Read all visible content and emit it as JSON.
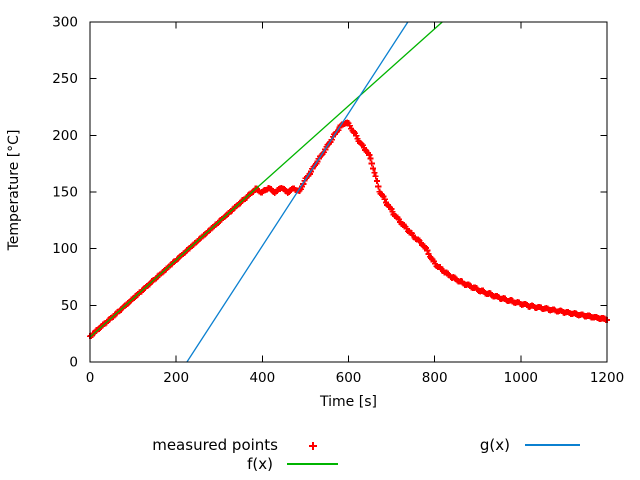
{
  "colors": {
    "background": "#ffffff",
    "axis": "#000000",
    "text": "#000000",
    "measured": "#ff0000",
    "f_line": "#00b400",
    "g_line": "#0b80d0"
  },
  "chart_data": {
    "type": "scatter",
    "title": "",
    "xlabel": "Time [s]",
    "ylabel": "Temperature [°C]",
    "xlim": [
      0,
      1200
    ],
    "ylim": [
      0,
      300
    ],
    "xticks": [
      0,
      200,
      400,
      600,
      800,
      1000,
      1200
    ],
    "yticks": [
      0,
      50,
      100,
      150,
      200,
      250,
      300
    ],
    "grid": false,
    "legend_position": "below",
    "series": [
      {
        "name": "measured points",
        "type": "points",
        "marker": "plus",
        "color": "#ff0000",
        "sample_step_s": 3,
        "jitter_c": 0.9,
        "anchor_points": [
          [
            0,
            22.5
          ],
          [
            25,
            31
          ],
          [
            50,
            39
          ],
          [
            75,
            47.5
          ],
          [
            100,
            56
          ],
          [
            125,
            64.5
          ],
          [
            150,
            73
          ],
          [
            175,
            81.5
          ],
          [
            200,
            90
          ],
          [
            225,
            98.5
          ],
          [
            250,
            107
          ],
          [
            275,
            115.5
          ],
          [
            300,
            124
          ],
          [
            325,
            132.5
          ],
          [
            350,
            141
          ],
          [
            365,
            146
          ],
          [
            378,
            150.5
          ],
          [
            385,
            153
          ],
          [
            392,
            151
          ],
          [
            398,
            149.5
          ],
          [
            406,
            151.5
          ],
          [
            414,
            153.5
          ],
          [
            421,
            152
          ],
          [
            429,
            149.5
          ],
          [
            437,
            152
          ],
          [
            444,
            154
          ],
          [
            451,
            152
          ],
          [
            459,
            149.5
          ],
          [
            467,
            152
          ],
          [
            474,
            153.5
          ],
          [
            481,
            151
          ],
          [
            487,
            150.5
          ],
          [
            492,
            155.5
          ],
          [
            500,
            161
          ],
          [
            510,
            166.5
          ],
          [
            520,
            172.5
          ],
          [
            530,
            178.5
          ],
          [
            540,
            184
          ],
          [
            550,
            190
          ],
          [
            560,
            196
          ],
          [
            570,
            202
          ],
          [
            580,
            207.5
          ],
          [
            588,
            210
          ],
          [
            595,
            211.5
          ],
          [
            600,
            210
          ],
          [
            606,
            206.5
          ],
          [
            612,
            203
          ],
          [
            620,
            198
          ],
          [
            628,
            193
          ],
          [
            636,
            189
          ],
          [
            643,
            186
          ],
          [
            648,
            182
          ],
          [
            652,
            178
          ],
          [
            656,
            173
          ],
          [
            660,
            167.5
          ],
          [
            664,
            162
          ],
          [
            668,
            156
          ],
          [
            672,
            151
          ],
          [
            676,
            148.5
          ],
          [
            680,
            146
          ],
          [
            688,
            140.5
          ],
          [
            696,
            136
          ],
          [
            704,
            131.5
          ],
          [
            712,
            127.5
          ],
          [
            720,
            124
          ],
          [
            730,
            119.5
          ],
          [
            740,
            115.5
          ],
          [
            750,
            111.5
          ],
          [
            760,
            108
          ],
          [
            770,
            104.5
          ],
          [
            778,
            101
          ],
          [
            783,
            98
          ],
          [
            788,
            94.5
          ],
          [
            793,
            91
          ],
          [
            798,
            88
          ],
          [
            804,
            85.5
          ],
          [
            812,
            83
          ],
          [
            820,
            80.5
          ],
          [
            830,
            77.5
          ],
          [
            840,
            75
          ],
          [
            852,
            72.5
          ],
          [
            864,
            70
          ],
          [
            876,
            68
          ],
          [
            888,
            66
          ],
          [
            900,
            64
          ],
          [
            915,
            61.5
          ],
          [
            930,
            59.5
          ],
          [
            945,
            57.5
          ],
          [
            960,
            55.5
          ],
          [
            975,
            54
          ],
          [
            990,
            52.5
          ],
          [
            1005,
            51
          ],
          [
            1020,
            49.5
          ],
          [
            1035,
            48.5
          ],
          [
            1050,
            47.5
          ],
          [
            1065,
            46.5
          ],
          [
            1080,
            45.5
          ],
          [
            1095,
            44.5
          ],
          [
            1110,
            43.5
          ],
          [
            1125,
            42.5
          ],
          [
            1140,
            41.5
          ],
          [
            1155,
            40.5
          ],
          [
            1170,
            39.5
          ],
          [
            1185,
            38.5
          ],
          [
            1200,
            37.5
          ]
        ]
      },
      {
        "name": "f(x)",
        "type": "line",
        "color": "#00b400",
        "slope": 0.34,
        "intercept": 22
      },
      {
        "name": "g(x)",
        "type": "line",
        "color": "#0b80d0",
        "slope": 0.585,
        "intercept": -131.6
      }
    ]
  }
}
